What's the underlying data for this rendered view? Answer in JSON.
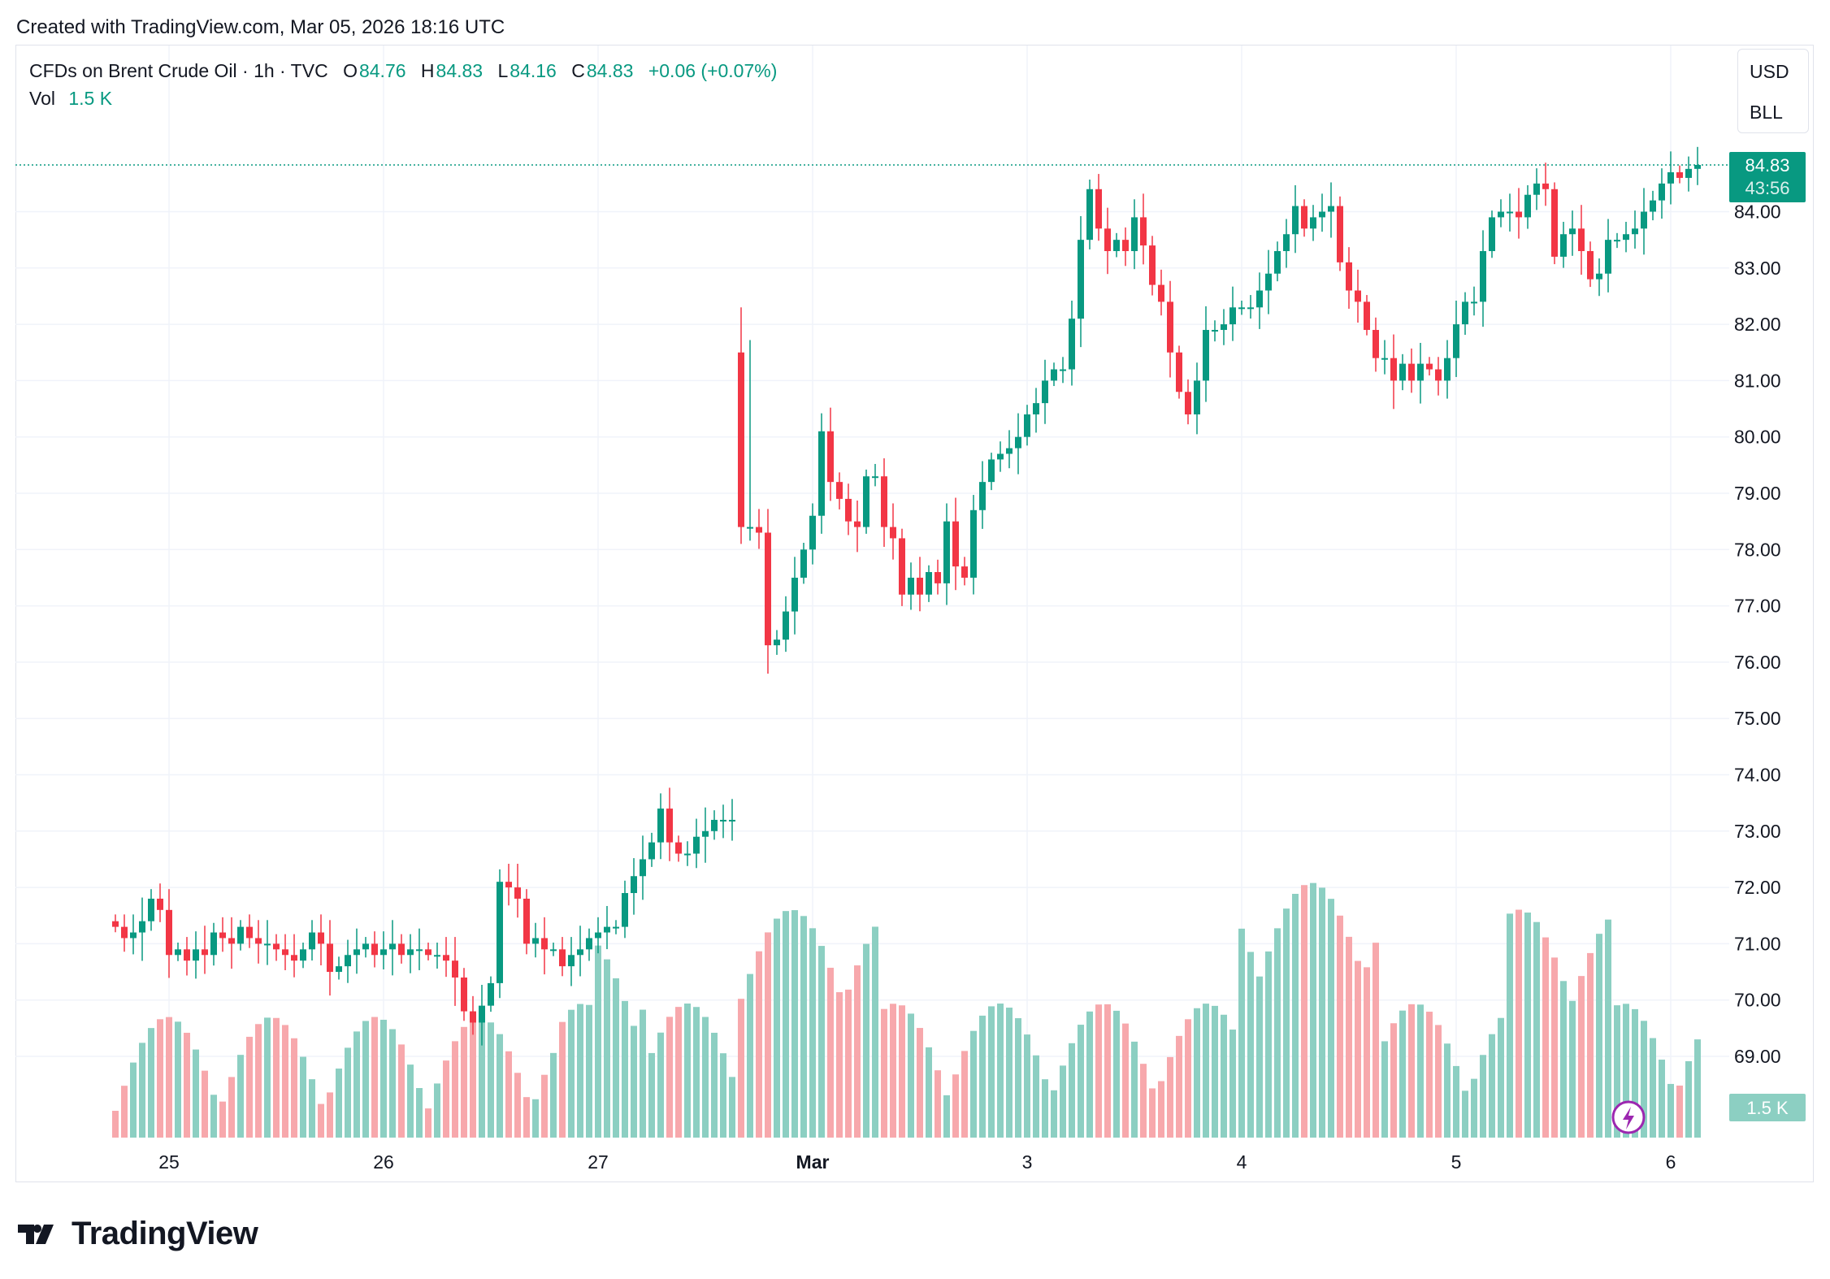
{
  "header": {
    "created": "Created with TradingView.com, Mar 05, 2026 18:16 UTC"
  },
  "legend": {
    "symbol": "CFDs on Brent Crude Oil · 1h · TVC",
    "o_label": "O",
    "o": "84.76",
    "h_label": "H",
    "h": "84.83",
    "l_label": "L",
    "l": "84.16",
    "c_label": "C",
    "c": "84.83",
    "change": "+0.06 (+0.07%)",
    "vol_label": "Vol",
    "vol": "1.5 K"
  },
  "unit_box": {
    "currency": "USD",
    "unit": "BLL"
  },
  "price_tag": {
    "price": "84.83",
    "countdown": "43:56"
  },
  "vol_tag": "1.5 K",
  "brand": "TradingView",
  "colors": {
    "up": "#089981",
    "down": "#f23645",
    "vol_up": "#8ccfc2",
    "vol_down": "#f7a8ac",
    "grid": "#f0f3fa"
  },
  "chart_data": {
    "type": "candlestick",
    "title": "CFDs on Brent Crude Oil · 1h · TVC",
    "y_ticks": [
      "69.00",
      "70.00",
      "71.00",
      "72.00",
      "73.00",
      "74.00",
      "75.00",
      "76.00",
      "77.00",
      "78.00",
      "79.00",
      "80.00",
      "81.00",
      "82.00",
      "83.00",
      "84.00"
    ],
    "y_range": [
      68.0,
      85.5
    ],
    "x_ticks": [
      {
        "label": "25",
        "index": 6
      },
      {
        "label": "26",
        "index": 30
      },
      {
        "label": "27",
        "index": 54
      },
      {
        "label": "Mar",
        "index": 78
      },
      {
        "label": "3",
        "index": 102
      },
      {
        "label": "4",
        "index": 126
      },
      {
        "label": "5",
        "index": 150
      },
      {
        "label": "6",
        "index": 174
      }
    ],
    "last_price": 84.83,
    "segment1_closes": [
      71.3,
      71.1,
      71.2,
      71.4,
      71.8,
      71.6,
      70.8,
      70.9,
      70.7,
      70.9,
      70.8,
      71.2,
      71.1,
      71.0,
      71.3,
      71.1,
      71.0,
      71.0,
      70.9,
      70.8,
      70.7,
      70.9,
      71.2,
      71.0,
      70.5,
      70.6,
      70.8,
      70.9,
      71.0,
      70.8,
      70.9,
      71.0,
      70.8,
      70.9,
      70.9,
      70.8,
      70.8,
      70.7,
      70.4,
      69.8,
      69.6,
      69.9,
      70.3,
      72.1,
      72.0,
      71.8,
      71.0,
      71.1,
      70.9,
      70.9,
      70.6,
      70.8,
      70.9,
      71.1,
      71.2,
      71.3,
      71.3,
      71.9,
      72.2,
      72.5,
      72.8,
      73.4,
      72.8,
      72.6,
      72.6,
      72.9,
      73.0,
      73.2,
      73.2,
      73.2
    ],
    "segment2_closes": [
      81.5,
      78.4,
      78.3,
      76.3,
      76.4,
      76.9,
      77.5,
      78.0,
      78.6,
      80.1,
      79.2,
      78.9,
      78.5,
      78.4,
      79.3,
      79.3,
      78.4,
      78.2,
      77.2,
      77.5,
      77.2,
      77.6,
      77.4,
      78.5,
      77.7,
      77.5,
      78.7,
      79.2,
      79.6,
      79.7,
      79.8,
      80.0,
      80.4,
      80.6,
      81.0,
      81.2,
      81.2,
      82.1,
      83.5,
      84.4,
      83.7,
      83.3,
      83.5,
      83.3,
      83.9,
      83.4,
      82.7,
      82.4,
      81.5,
      80.8,
      80.4,
      81.0,
      81.9,
      81.9,
      82.0,
      82.3,
      82.3,
      82.3,
      82.6,
      82.9,
      83.3,
      83.6,
      84.1,
      83.7,
      83.9,
      84.0,
      84.1,
      83.1,
      82.6,
      82.4,
      81.9,
      81.4,
      81.4,
      81.0,
      81.3,
      81.0,
      81.3,
      81.2,
      81.0,
      81.4,
      82.0,
      82.4,
      82.4,
      83.3,
      83.9,
      84.0,
      84.0,
      83.9,
      84.3,
      84.5,
      84.4,
      83.2,
      83.6,
      83.7,
      83.3,
      82.8,
      82.9,
      83.5,
      83.5,
      83.6,
      83.7,
      84.0,
      84.2,
      84.5,
      84.7,
      84.6,
      84.76,
      84.83
    ],
    "volume_pattern": [
      {
        "x_index": 6,
        "level": "low"
      },
      {
        "x_index": 54,
        "level": "high"
      },
      {
        "x_index": 102,
        "level": "high"
      },
      {
        "x_index": 126,
        "level": "medium"
      }
    ]
  }
}
